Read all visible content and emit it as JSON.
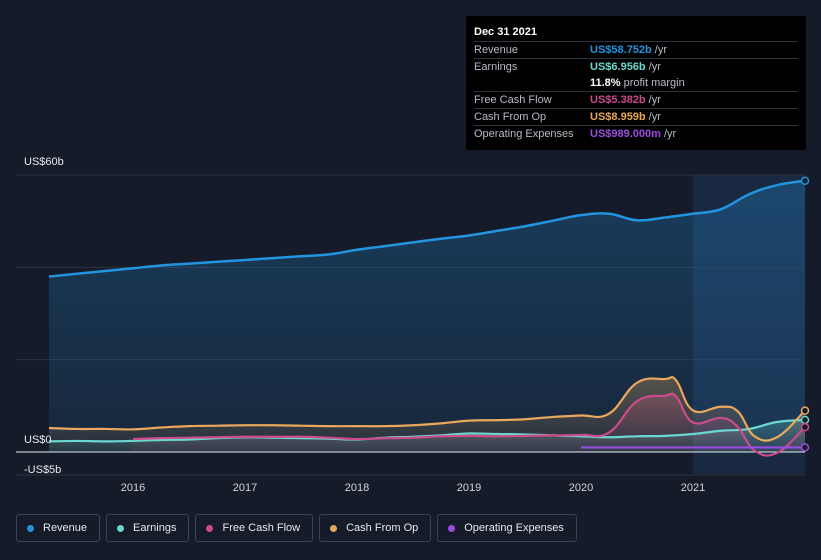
{
  "tooltip": {
    "date": "Dec 31 2021",
    "rows": [
      {
        "label": "Revenue",
        "value": "US$58.752b",
        "unit": "/yr",
        "color": "#2394df"
      },
      {
        "label": "Earnings",
        "value": "US$6.956b",
        "unit": "/yr",
        "color": "#6ad8d0"
      },
      {
        "label": "",
        "value": "11.8%",
        "unit": "profit margin",
        "color": "#ffffff"
      },
      {
        "label": "Free Cash Flow",
        "value": "US$5.382b",
        "unit": "/yr",
        "color": "#cc4b8a"
      },
      {
        "label": "Cash From Op",
        "value": "US$8.959b",
        "unit": "/yr",
        "color": "#e9a85b"
      },
      {
        "label": "Operating Expenses",
        "value": "US$989.000m",
        "unit": "/yr",
        "color": "#9b4de0"
      }
    ]
  },
  "legend": [
    {
      "label": "Revenue",
      "color": "#2394df"
    },
    {
      "label": "Earnings",
      "color": "#6ad8d0"
    },
    {
      "label": "Free Cash Flow",
      "color": "#cc4b8a"
    },
    {
      "label": "Cash From Op",
      "color": "#e9a85b"
    },
    {
      "label": "Operating Expenses",
      "color": "#9b4de0"
    }
  ],
  "chart_data": {
    "type": "area",
    "y_tick_labels": [
      "US$60b",
      "US$0",
      "-US$5b"
    ],
    "ylim": [
      -5,
      60
    ],
    "xlim": [
      2015.2,
      2022.0
    ],
    "x_tick_labels": [
      "2016",
      "2017",
      "2018",
      "2019",
      "2020",
      "2021"
    ],
    "x_ticks": [
      2016,
      2017,
      2018,
      2019,
      2020,
      2021
    ],
    "highlight_from": 2021.0,
    "grid": true,
    "series": [
      {
        "name": "Revenue",
        "color": "#2394df",
        "fill": true,
        "points": [
          [
            2015.25,
            38
          ],
          [
            2015.5,
            38.6
          ],
          [
            2015.75,
            39.2
          ],
          [
            2016.0,
            39.8
          ],
          [
            2016.25,
            40.4
          ],
          [
            2016.5,
            40.8
          ],
          [
            2016.75,
            41.2
          ],
          [
            2017.0,
            41.6
          ],
          [
            2017.25,
            42.0
          ],
          [
            2017.5,
            42.4
          ],
          [
            2017.75,
            42.8
          ],
          [
            2018.0,
            43.8
          ],
          [
            2018.25,
            44.6
          ],
          [
            2018.5,
            45.4
          ],
          [
            2018.75,
            46.2
          ],
          [
            2019.0,
            46.9
          ],
          [
            2019.25,
            47.9
          ],
          [
            2019.5,
            48.9
          ],
          [
            2019.75,
            50.1
          ],
          [
            2020.0,
            51.3
          ],
          [
            2020.25,
            51.6
          ],
          [
            2020.5,
            50.2
          ],
          [
            2020.75,
            50.8
          ],
          [
            2021.0,
            51.6
          ],
          [
            2021.25,
            52.6
          ],
          [
            2021.5,
            55.8
          ],
          [
            2021.75,
            57.8
          ],
          [
            2022.0,
            58.75
          ]
        ]
      },
      {
        "name": "Earnings",
        "color": "#6ad8d0",
        "fill": true,
        "points": [
          [
            2015.25,
            2.3
          ],
          [
            2015.5,
            2.4
          ],
          [
            2015.75,
            2.3
          ],
          [
            2016.0,
            2.4
          ],
          [
            2016.25,
            2.6
          ],
          [
            2016.5,
            2.7
          ],
          [
            2016.75,
            3.0
          ],
          [
            2017.0,
            3.2
          ],
          [
            2017.25,
            3.1
          ],
          [
            2017.5,
            3.0
          ],
          [
            2017.75,
            2.9
          ],
          [
            2018.0,
            2.7
          ],
          [
            2018.25,
            3.1
          ],
          [
            2018.5,
            3.3
          ],
          [
            2018.75,
            3.6
          ],
          [
            2019.0,
            4.0
          ],
          [
            2019.25,
            3.9
          ],
          [
            2019.5,
            3.8
          ],
          [
            2019.75,
            3.6
          ],
          [
            2020.0,
            3.4
          ],
          [
            2020.25,
            3.2
          ],
          [
            2020.5,
            3.4
          ],
          [
            2020.75,
            3.5
          ],
          [
            2021.0,
            3.9
          ],
          [
            2021.25,
            4.6
          ],
          [
            2021.5,
            5.0
          ],
          [
            2021.75,
            6.5
          ],
          [
            2022.0,
            6.96
          ]
        ]
      },
      {
        "name": "Free Cash Flow",
        "color": "#cc4b8a",
        "fill": true,
        "points": [
          [
            2016.0,
            2.8
          ],
          [
            2016.25,
            3.0
          ],
          [
            2016.5,
            3.1
          ],
          [
            2016.75,
            3.2
          ],
          [
            2017.0,
            3.3
          ],
          [
            2017.25,
            3.3
          ],
          [
            2017.5,
            3.3
          ],
          [
            2017.75,
            3.1
          ],
          [
            2018.0,
            2.8
          ],
          [
            2018.25,
            3.0
          ],
          [
            2018.5,
            3.1
          ],
          [
            2018.75,
            3.4
          ],
          [
            2019.0,
            3.5
          ],
          [
            2019.25,
            3.4
          ],
          [
            2019.5,
            3.5
          ],
          [
            2019.75,
            3.6
          ],
          [
            2020.0,
            3.7
          ],
          [
            2020.25,
            4.2
          ],
          [
            2020.5,
            11.0
          ],
          [
            2020.75,
            12.2
          ],
          [
            2020.85,
            12.0
          ],
          [
            2021.0,
            6.4
          ],
          [
            2021.25,
            7.4
          ],
          [
            2021.4,
            5.4
          ],
          [
            2021.55,
            0.3
          ],
          [
            2021.75,
            -0.2
          ],
          [
            2022.0,
            5.38
          ]
        ]
      },
      {
        "name": "Cash From Op",
        "color": "#e9a85b",
        "fill": true,
        "points": [
          [
            2015.25,
            5.2
          ],
          [
            2015.5,
            5.0
          ],
          [
            2015.75,
            5.0
          ],
          [
            2016.0,
            4.9
          ],
          [
            2016.25,
            5.3
          ],
          [
            2016.5,
            5.6
          ],
          [
            2016.75,
            5.7
          ],
          [
            2017.0,
            5.8
          ],
          [
            2017.25,
            5.8
          ],
          [
            2017.5,
            5.7
          ],
          [
            2017.75,
            5.6
          ],
          [
            2018.0,
            5.6
          ],
          [
            2018.25,
            5.6
          ],
          [
            2018.5,
            5.8
          ],
          [
            2018.75,
            6.2
          ],
          [
            2019.0,
            6.8
          ],
          [
            2019.25,
            6.9
          ],
          [
            2019.5,
            7.1
          ],
          [
            2019.75,
            7.6
          ],
          [
            2020.0,
            7.9
          ],
          [
            2020.25,
            8.3
          ],
          [
            2020.5,
            15.0
          ],
          [
            2020.75,
            15.8
          ],
          [
            2020.85,
            15.5
          ],
          [
            2021.0,
            9.0
          ],
          [
            2021.25,
            9.8
          ],
          [
            2021.4,
            8.8
          ],
          [
            2021.55,
            3.4
          ],
          [
            2021.75,
            3.2
          ],
          [
            2022.0,
            8.96
          ]
        ]
      },
      {
        "name": "Operating Expenses",
        "color": "#9b4de0",
        "fill": false,
        "points": [
          [
            2020.0,
            0.99
          ],
          [
            2020.5,
            0.99
          ],
          [
            2021.0,
            0.99
          ],
          [
            2021.5,
            0.99
          ],
          [
            2021.8,
            0.99
          ],
          [
            2022.0,
            0.99
          ]
        ]
      }
    ]
  }
}
